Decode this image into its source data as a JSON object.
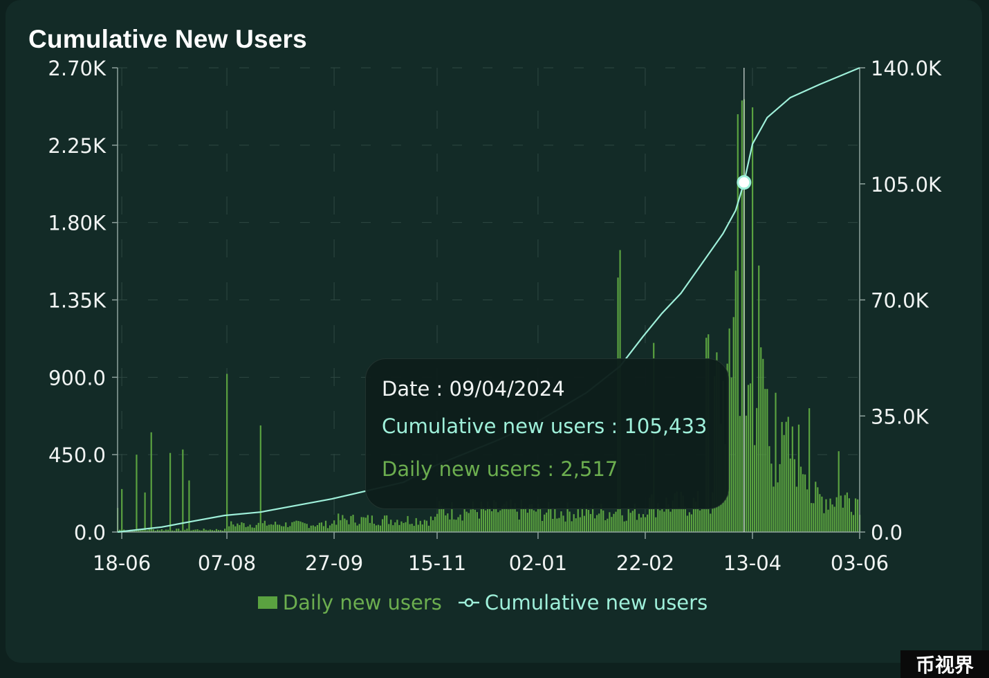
{
  "card": {
    "title": "Cumulative New Users"
  },
  "chart_data": {
    "type": "bar",
    "title": "Cumulative New Users",
    "x_ticks": [
      "18-06",
      "07-08",
      "27-09",
      "15-11",
      "02-01",
      "22-02",
      "13-04",
      "03-06"
    ],
    "x_range": [
      "2023-06-16",
      "2024-06-03"
    ],
    "y_left_ticks": [
      "0.0",
      "450.0",
      "900.0",
      "1.35K",
      "1.80K",
      "2.25K",
      "2.70K"
    ],
    "y_left_range": [
      0,
      2700
    ],
    "y_right_ticks": [
      "0.0",
      "35.0K",
      "70.0K",
      "105.0K",
      "140.0K"
    ],
    "y_right_range": [
      0,
      140000
    ],
    "legend_position": "bottom-center",
    "grid": "dashed",
    "series": [
      {
        "name": "Daily new users",
        "type": "bar",
        "axis": "left",
        "color": "#5aa240",
        "segments": [
          {
            "start": "2023-06-16",
            "end": "2023-08-06",
            "level": 15
          },
          {
            "start": "2023-08-07",
            "end": "2023-09-26",
            "level": 50
          },
          {
            "start": "2023-09-27",
            "end": "2023-11-14",
            "level": 80
          },
          {
            "start": "2023-11-15",
            "end": "2024-01-01",
            "level": 140
          },
          {
            "start": "2024-01-02",
            "end": "2024-02-21",
            "level": 130
          },
          {
            "start": "2024-02-22",
            "end": "2024-03-25",
            "level": 180
          },
          {
            "start": "2024-03-26",
            "end": "2024-04-20",
            "level": 900
          },
          {
            "start": "2024-04-21",
            "end": "2024-05-10",
            "level": 500
          },
          {
            "start": "2024-05-11",
            "end": "2024-06-03",
            "level": 220
          }
        ],
        "spikes": [
          {
            "date": "2023-06-16",
            "value": 140
          },
          {
            "date": "2023-06-18",
            "value": 250
          },
          {
            "date": "2023-06-25",
            "value": 450
          },
          {
            "date": "2023-06-29",
            "value": 230
          },
          {
            "date": "2023-07-02",
            "value": 580
          },
          {
            "date": "2023-07-11",
            "value": 460
          },
          {
            "date": "2023-07-17",
            "value": 480
          },
          {
            "date": "2023-07-20",
            "value": 300
          },
          {
            "date": "2023-08-07",
            "value": 920
          },
          {
            "date": "2023-08-23",
            "value": 620
          },
          {
            "date": "2024-02-09",
            "value": 1480
          },
          {
            "date": "2024-02-10",
            "value": 1640
          },
          {
            "date": "2024-02-26",
            "value": 1100
          },
          {
            "date": "2024-03-22",
            "value": 1130
          },
          {
            "date": "2024-03-23",
            "value": 1150
          },
          {
            "date": "2024-04-04",
            "value": 1250
          },
          {
            "date": "2024-04-05",
            "value": 1520
          },
          {
            "date": "2024-04-06",
            "value": 2430
          },
          {
            "date": "2024-04-08",
            "value": 2510
          },
          {
            "date": "2024-04-09",
            "value": 2517
          },
          {
            "date": "2024-04-13",
            "value": 2470
          },
          {
            "date": "2024-04-16",
            "value": 1550
          },
          {
            "date": "2024-04-24",
            "value": 810
          },
          {
            "date": "2024-04-30",
            "value": 670
          },
          {
            "date": "2024-05-10",
            "value": 720
          },
          {
            "date": "2024-05-24",
            "value": 470
          }
        ]
      },
      {
        "name": "Cumulative new users",
        "type": "line",
        "axis": "right",
        "color": "#9ff0da",
        "x": [
          "2023-06-16",
          "2023-06-23",
          "2023-07-07",
          "2023-07-24",
          "2023-08-06",
          "2023-08-23",
          "2023-09-26",
          "2023-10-30",
          "2023-11-14",
          "2023-12-15",
          "2024-01-01",
          "2024-01-25",
          "2024-02-10",
          "2024-02-21",
          "2024-03-01",
          "2024-03-10",
          "2024-03-20",
          "2024-03-30",
          "2024-04-05",
          "2024-04-09",
          "2024-04-13",
          "2024-04-20",
          "2024-05-01",
          "2024-05-15",
          "2024-06-03"
        ],
        "values": [
          0,
          500,
          1500,
          3500,
          5000,
          6000,
          10000,
          15000,
          20000,
          28000,
          33000,
          42000,
          50000,
          59000,
          66000,
          72000,
          81000,
          90000,
          97000,
          105433,
          117000,
          125000,
          131000,
          135000,
          140000
        ]
      }
    ],
    "highlight": {
      "date": "2024-04-09",
      "series": "Cumulative new users",
      "value": 105433
    }
  },
  "tooltip": {
    "date_text": "Date : 09/04/2024",
    "cumulative_text": "Cumulative new users : 105,433",
    "daily_text": "Daily new users : 2,517"
  },
  "legend": {
    "daily_label": "Daily new users",
    "cumulative_label": "Cumulative new users"
  },
  "watermark": "币视界"
}
